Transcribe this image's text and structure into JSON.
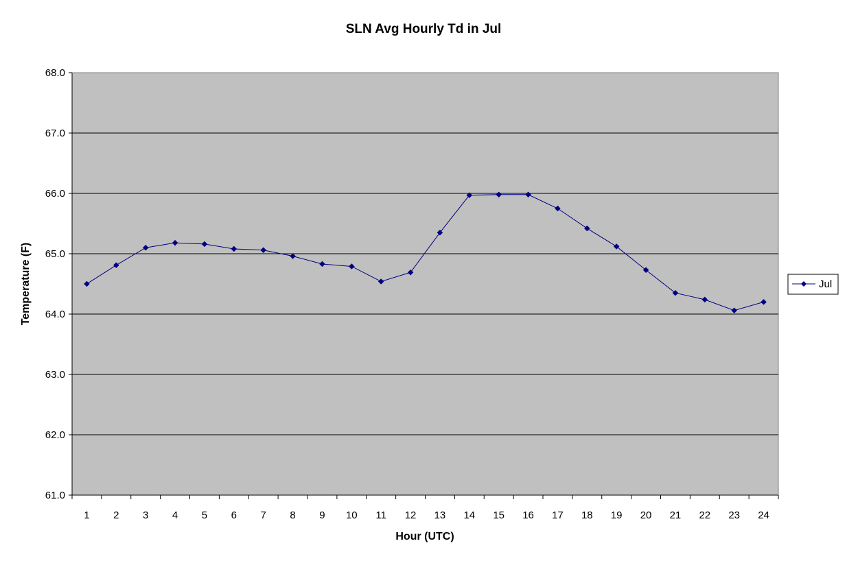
{
  "chart_data": {
    "type": "line",
    "title": "SLN Avg Hourly Td in Jul",
    "xlabel": "Hour (UTC)",
    "ylabel": "Temperature (F)",
    "ylim": [
      61.0,
      68.0
    ],
    "y_ticks": [
      "61.0",
      "62.0",
      "63.0",
      "64.0",
      "65.0",
      "66.0",
      "67.0",
      "68.0"
    ],
    "categories": [
      "1",
      "2",
      "3",
      "4",
      "5",
      "6",
      "7",
      "8",
      "9",
      "10",
      "11",
      "12",
      "13",
      "14",
      "15",
      "16",
      "17",
      "18",
      "19",
      "20",
      "21",
      "22",
      "23",
      "24"
    ],
    "series": [
      {
        "name": "Jul",
        "color": "#000080",
        "marker": "diamond",
        "values": [
          64.5,
          64.81,
          65.1,
          65.18,
          65.16,
          65.08,
          65.06,
          64.96,
          64.83,
          64.79,
          64.54,
          64.69,
          65.35,
          65.97,
          65.98,
          65.98,
          65.75,
          65.42,
          65.12,
          64.73,
          64.35,
          64.24,
          64.06,
          64.2
        ]
      }
    ],
    "grid": true,
    "plot_background": "#c0c0c0",
    "legend_position": "right"
  }
}
